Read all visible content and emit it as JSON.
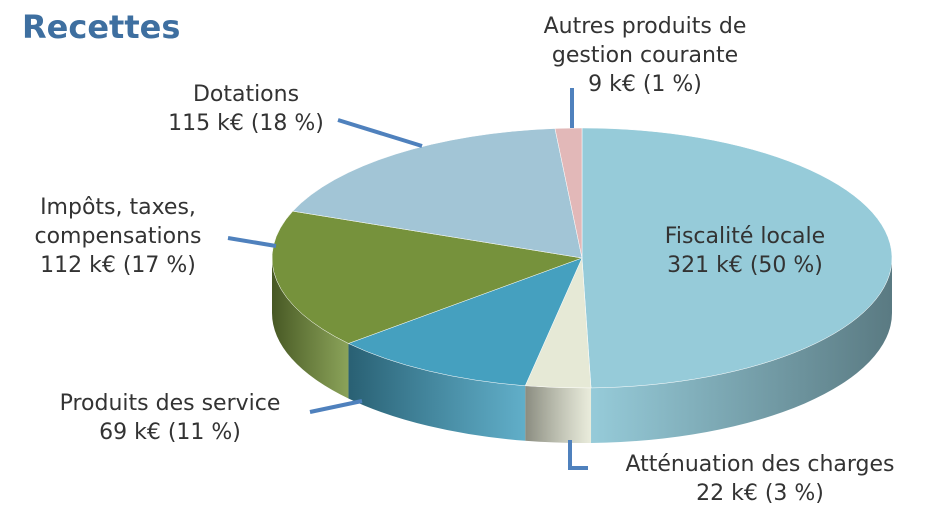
{
  "chart_data": {
    "type": "pie",
    "title": "Recettes",
    "categories": [
      "Fiscalité locale",
      "Atténuation des charges",
      "Produits des service",
      "Impôts, taxes, compensations",
      "Dotations",
      "Autres produits de gestion courante"
    ],
    "values": [
      321,
      22,
      69,
      112,
      115,
      9
    ],
    "value_labels": [
      "321 k€ (50 %)",
      "22 k€ (3 %)",
      "69 k€ (11 %)",
      "112 k€ (17 %)",
      "115 k€ (18 %)",
      "9 k€ (1 %)"
    ],
    "colors": [
      "#96cbd9",
      "#e6e9d6",
      "#45a0bf",
      "#76923c",
      "#a2c5d6",
      "#e2b8b8"
    ]
  }
}
